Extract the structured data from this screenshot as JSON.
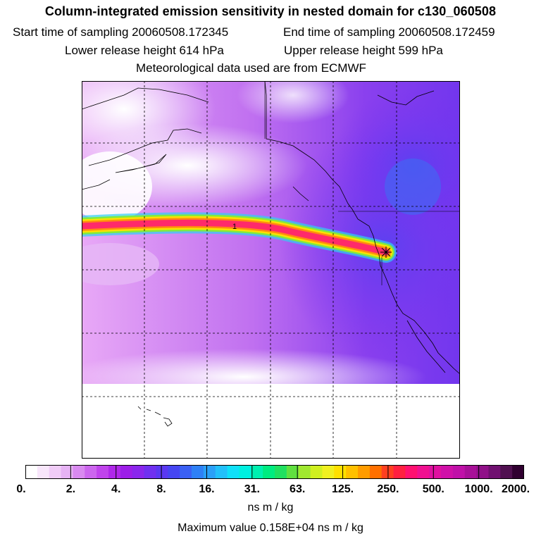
{
  "header": {
    "title": "Column-integrated emission sensitivity in nested domain for c130_060508",
    "start_label": "Start time of sampling 20060508.172345",
    "end_label": "End time of sampling 20060508.172459",
    "lower_label": "Lower release height  614 hPa",
    "upper_label": "Upper release height  599 hPa",
    "met_label": "Meteorological data used are from ECMWF"
  },
  "map": {
    "plume_label": "1",
    "colors": {
      "background_low": "#f6dcf9",
      "background_mid": "#c060f0",
      "background_high": "#6a3cf0",
      "plume_edge": "#00e0e0",
      "plume_mid": "#ffe000",
      "plume_core": "#ff2a6a",
      "coast": "#000000"
    }
  },
  "colorbar": {
    "ticks": [
      "0.",
      "2.",
      "4.",
      "8.",
      "16.",
      "31.",
      "63.",
      "125.",
      "250.",
      "500.",
      "1000.",
      "2000."
    ],
    "colors": [
      "#ffffff",
      "#f8e6fb",
      "#f0ccf7",
      "#e6b3f4",
      "#d98af0",
      "#cc66ee",
      "#c044ec",
      "#b028ea",
      "#9c1ee8",
      "#8a26ec",
      "#7030f0",
      "#5a38f2",
      "#4646f2",
      "#3a60f4",
      "#2e80f6",
      "#2aa0f8",
      "#22c0fa",
      "#10e0f8",
      "#00f0e0",
      "#00f0b0",
      "#00ec80",
      "#20e060",
      "#60e040",
      "#a0e830",
      "#d0f020",
      "#f0f020",
      "#ffe000",
      "#ffc000",
      "#ff9c00",
      "#ff7000",
      "#ff4020",
      "#ff2040",
      "#ff1070",
      "#f01090",
      "#e010a0",
      "#d010a8",
      "#c010a8",
      "#a81098",
      "#901088",
      "#701070",
      "#501050",
      "#300030"
    ],
    "units": "ns m / kg",
    "max_label": "Maximum value  0.158E+04 ns m / kg"
  }
}
